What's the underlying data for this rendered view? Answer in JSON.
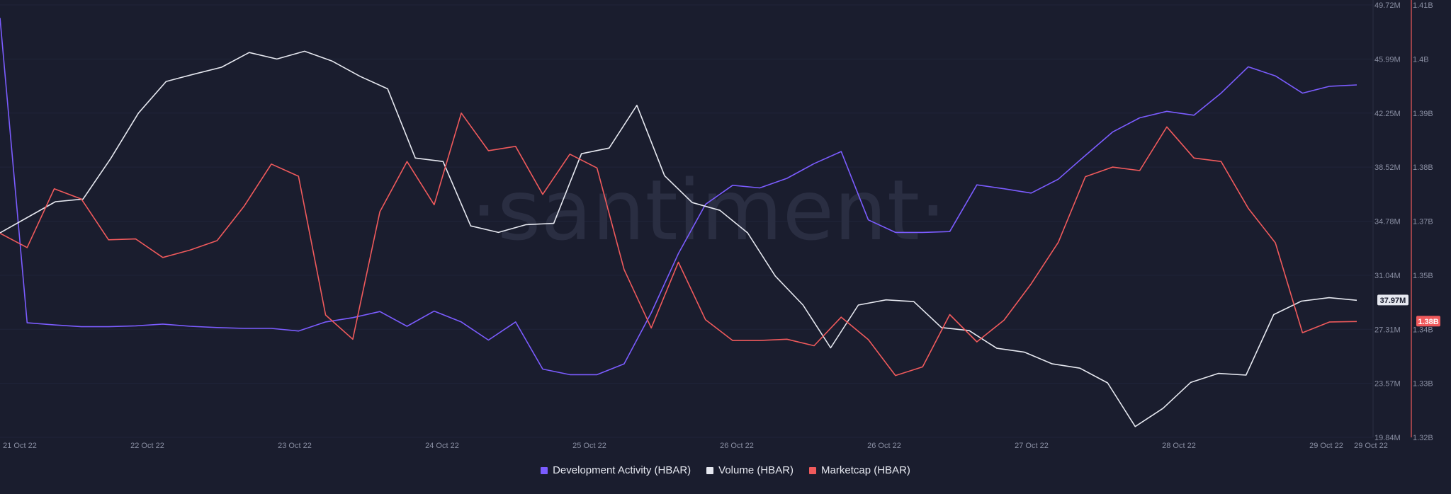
{
  "chart_data": {
    "type": "line",
    "watermark": "·santiment·",
    "x_labels": [
      "21 Oct 22",
      "22 Oct 22",
      "23 Oct 22",
      "24 Oct 22",
      "25 Oct 22",
      "26 Oct 22",
      "26 Oct 22",
      "27 Oct 22",
      "28 Oct 22",
      "29 Oct 22",
      "29 Oct 22"
    ],
    "y_left_ticks": [
      "49.72M",
      "45.99M",
      "42.25M",
      "38.52M",
      "34.78M",
      "31.04M",
      "27.31M",
      "23.57M",
      "19.84M"
    ],
    "y_left_range": [
      19.84,
      49.72
    ],
    "y_right_ticks": [
      "1.41B",
      "1.4B",
      "1.39B",
      "1.38B",
      "1.37B",
      "1.35B",
      "1.34B",
      "1.33B",
      "1.32B"
    ],
    "y_right_range": [
      1.32,
      1.41
    ],
    "current_labels": {
      "volume": "37.97M",
      "marketcap": "1.38B"
    },
    "series": [
      {
        "name": "Development Activity (HBAR)",
        "color": "#7b5cff",
        "values": [
          0.97,
          0.265,
          0.26,
          0.256,
          0.256,
          0.258,
          0.262,
          0.257,
          0.254,
          0.252,
          0.252,
          0.246,
          0.267,
          0.277,
          0.291,
          0.257,
          0.292,
          0.267,
          0.225,
          0.267,
          0.158,
          0.145,
          0.145,
          0.17,
          0.288,
          0.425,
          0.539,
          0.583,
          0.577,
          0.599,
          0.633,
          0.661,
          0.503,
          0.474,
          0.474,
          0.476,
          0.584,
          0.575,
          0.565,
          0.597,
          0.652,
          0.706,
          0.739,
          0.754,
          0.745,
          0.796,
          0.857,
          0.836,
          0.796,
          0.812,
          0.815
        ]
      },
      {
        "name": "Volume (HBAR)",
        "color": "#e6e8f0",
        "values": [
          0.473,
          0.509,
          0.545,
          0.551,
          0.645,
          0.75,
          0.823,
          0.84,
          0.856,
          0.89,
          0.875,
          0.893,
          0.87,
          0.835,
          0.806,
          0.646,
          0.638,
          0.489,
          0.474,
          0.492,
          0.495,
          0.656,
          0.669,
          0.768,
          0.605,
          0.543,
          0.525,
          0.473,
          0.373,
          0.306,
          0.207,
          0.306,
          0.318,
          0.314,
          0.254,
          0.247,
          0.206,
          0.197,
          0.17,
          0.16,
          0.126,
          0.025,
          0.067,
          0.127,
          0.148,
          0.144,
          0.284,
          0.315,
          0.323,
          0.317
        ]
      },
      {
        "name": "Marketcap (HBAR)",
        "color": "#f05a5c",
        "values": [
          0.472,
          0.439,
          0.575,
          0.551,
          0.457,
          0.459,
          0.416,
          0.433,
          0.455,
          0.535,
          0.632,
          0.604,
          0.283,
          0.227,
          0.522,
          0.638,
          0.538,
          0.75,
          0.663,
          0.673,
          0.562,
          0.655,
          0.623,
          0.388,
          0.253,
          0.405,
          0.272,
          0.224,
          0.224,
          0.227,
          0.212,
          0.278,
          0.226,
          0.143,
          0.163,
          0.284,
          0.221,
          0.271,
          0.355,
          0.451,
          0.603,
          0.625,
          0.617,
          0.718,
          0.646,
          0.638,
          0.53,
          0.45,
          0.242,
          0.267,
          0.268
        ]
      }
    ]
  }
}
